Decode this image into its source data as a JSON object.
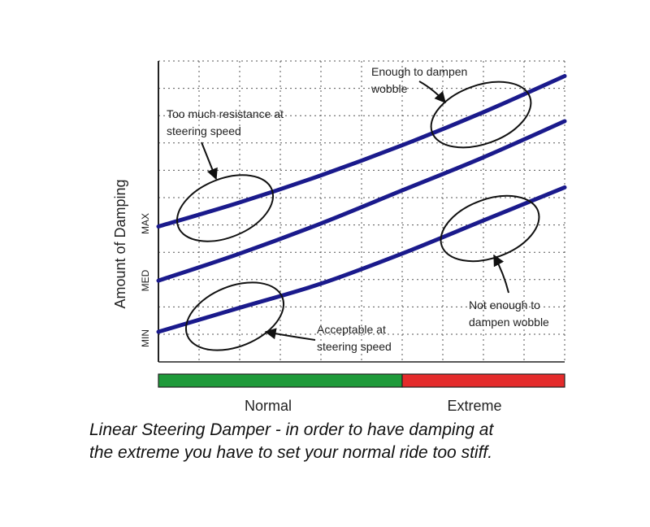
{
  "chart_data": {
    "type": "line",
    "ylabel": "Amount of Damping",
    "y_ticks": [
      "MIN",
      "MED",
      "MAX"
    ],
    "x_bands": [
      {
        "label": "Normal",
        "color": "#1f9a3a",
        "from": 0,
        "to": 0.6
      },
      {
        "label": "Extreme",
        "color": "#e42b2b",
        "from": 0.6,
        "to": 1.0
      }
    ],
    "xlim": [
      0,
      1
    ],
    "ylim": [
      0,
      1
    ],
    "grid": true,
    "line_color": "#1a1a8c",
    "series": [
      {
        "points": [
          [
            0,
            0.45
          ],
          [
            0.2,
            0.53
          ],
          [
            0.4,
            0.62
          ],
          [
            0.6,
            0.72
          ],
          [
            0.8,
            0.83
          ],
          [
            1.0,
            0.95
          ]
        ]
      },
      {
        "points": [
          [
            0,
            0.27
          ],
          [
            0.2,
            0.36
          ],
          [
            0.4,
            0.46
          ],
          [
            0.6,
            0.57
          ],
          [
            0.8,
            0.68
          ],
          [
            1.0,
            0.8
          ]
        ]
      },
      {
        "points": [
          [
            0,
            0.1
          ],
          [
            0.2,
            0.18
          ],
          [
            0.4,
            0.26
          ],
          [
            0.6,
            0.36
          ],
          [
            0.8,
            0.47
          ],
          [
            1.0,
            0.58
          ]
        ]
      }
    ],
    "annotations": [
      {
        "id": "too-much",
        "lines": [
          "Too much resistance at",
          "steering speed"
        ]
      },
      {
        "id": "enough",
        "lines": [
          "Enough to dampen",
          "wobble"
        ]
      },
      {
        "id": "acceptable",
        "lines": [
          "Acceptable at",
          "steering speed"
        ]
      },
      {
        "id": "not-enough",
        "lines": [
          "Not enough to",
          "dampen wobble"
        ]
      }
    ]
  },
  "caption_lines": [
    "Linear Steering Damper - in order to have damping at",
    "the extreme you have to set your normal ride too stiff."
  ]
}
